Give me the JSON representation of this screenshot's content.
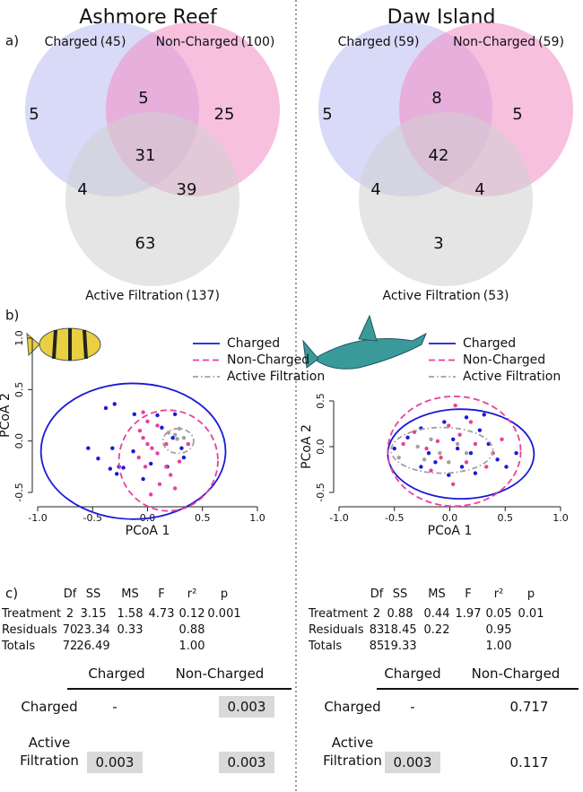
{
  "panel_labels": {
    "a": "a)",
    "b": "b)",
    "c": "c)"
  },
  "chart_data": [
    {
      "type": "venn",
      "title": "Ashmore Reef",
      "sets": [
        {
          "name": "Charged",
          "count": "(45)",
          "color": "#b9b9f2"
        },
        {
          "name": "Non-Charged",
          "count": "(100)",
          "color": "#f08cc4"
        },
        {
          "name": "Active Filtration",
          "count": "(137)",
          "color": "#cfcfcf"
        }
      ],
      "regions": [
        5,
        5,
        25,
        31,
        4,
        39,
        63
      ]
    },
    {
      "type": "venn",
      "title": "Daw Island",
      "sets": [
        {
          "name": "Charged",
          "count": "(59)",
          "color": "#b9b9f2"
        },
        {
          "name": "Non-Charged",
          "count": "(59)",
          "color": "#f08cc4"
        },
        {
          "name": "Active Filtration",
          "count": "(53)",
          "color": "#cfcfcf"
        }
      ],
      "regions": [
        5,
        8,
        5,
        42,
        4,
        4,
        3
      ]
    },
    {
      "type": "scatter",
      "xlabel": "PCoA 1",
      "ylabel": "PCoA 2",
      "xlim": [
        -1,
        1
      ],
      "ylim": [
        -0.5,
        1
      ],
      "xticks": [
        {
          "value": -1,
          "label": "-1.0"
        },
        -0.5,
        {
          "value": 0,
          "label": "0.0"
        },
        0.5,
        {
          "value": 1,
          "label": "1.0"
        }
      ],
      "yticks": [
        -0.5,
        {
          "value": 0,
          "label": "0.0"
        },
        0.5,
        {
          "value": 1,
          "label": "1.0"
        }
      ],
      "series": [
        {
          "name": "Charged",
          "color": "#1a1ad6",
          "line_style": "solid",
          "x": [
            -0.54,
            -0.45,
            -0.38,
            -0.3,
            -0.32,
            -0.34,
            -0.26,
            -0.28,
            -0.22,
            -0.12,
            -0.13,
            0.09,
            0.13,
            0.23,
            0.31,
            0.33,
            0.18,
            0.25,
            -0.04,
            0.03
          ],
          "values": [
            -0.07,
            -0.17,
            0.32,
            0.36,
            -0.07,
            -0.27,
            -0.25,
            -0.32,
            -0.26,
            0.26,
            -0.1,
            0.25,
            0.13,
            0.03,
            -0.07,
            -0.16,
            -0.25,
            0.26,
            -0.37,
            -0.22
          ],
          "ellipse": {
            "cx": -0.13,
            "cy": -0.1,
            "rx": 0.84,
            "ry": 0.66
          }
        },
        {
          "name": "Non-Charged",
          "color": "#e8409c",
          "line_style": "dashed",
          "x": [
            -0.07,
            -0.04,
            0,
            0.04,
            0.09,
            -0.02,
            0.17,
            0.21,
            0.11,
            0.03,
            0.25,
            0.29,
            0,
            0.09,
            -0.08,
            0.17,
            0.37,
            -0.04
          ],
          "values": [
            0.1,
            0.03,
            -0.03,
            -0.07,
            -0.12,
            -0.25,
            -0.25,
            -0.33,
            -0.42,
            -0.52,
            -0.46,
            -0.2,
            0.19,
            0.15,
            -0.16,
            -0.03,
            -0.03,
            0.28
          ],
          "ellipse": {
            "cx": 0.19,
            "cy": -0.19,
            "rx": 0.45,
            "ry": 0.49
          }
        },
        {
          "name": "Active Filtration",
          "color": "#a0a0a0",
          "line_style": "dashdot",
          "x": [
            0.19,
            0.25,
            0.27,
            0.33,
            0.29
          ],
          "values": [
            0.08,
            0.06,
            0.02,
            0.03,
            0.12
          ],
          "ellipse": {
            "cx": 0.28,
            "cy": 0,
            "rx": 0.14,
            "ry": 0.12
          }
        }
      ]
    },
    {
      "type": "scatter",
      "xlabel": "PCoA 1",
      "ylabel": "PCoA 2",
      "xlim": [
        -1,
        1
      ],
      "ylim": [
        -0.5,
        0.5
      ],
      "xticks": [
        {
          "value": -1,
          "label": "-1.0"
        },
        -0.5,
        {
          "value": 0,
          "label": "0.0"
        },
        0.5,
        {
          "value": 1,
          "label": "1.0"
        }
      ],
      "yticks": [
        -0.5,
        {
          "value": 0,
          "label": "0.0"
        },
        0.5
      ],
      "series": [
        {
          "name": "Charged",
          "color": "#1a1ad6",
          "line_style": "solid",
          "x": [
            -0.5,
            -0.38,
            -0.26,
            -0.19,
            -0.13,
            -0.05,
            0.03,
            0.11,
            0.19,
            0.27,
            0.35,
            0.43,
            0.51,
            0.31,
            0.15,
            -0.01,
            -0.26,
            0.07,
            0.23,
            0.6
          ],
          "values": [
            -0.02,
            0.1,
            0.2,
            -0.07,
            -0.17,
            0.27,
            0.08,
            -0.22,
            -0.07,
            0.18,
            0.03,
            -0.14,
            -0.22,
            0.35,
            0.32,
            -0.31,
            -0.22,
            -0.02,
            -0.29,
            -0.07
          ],
          "ellipse": {
            "cx": 0.1,
            "cy": -0.08,
            "rx": 0.66,
            "ry": 0.49
          }
        },
        {
          "name": "Non-Charged",
          "color": "#e8409c",
          "line_style": "dashed",
          "x": [
            -0.42,
            -0.32,
            -0.21,
            -0.11,
            -0.08,
            -0.01,
            0.05,
            0.09,
            0.15,
            0.23,
            0.33,
            0.39,
            -0.17,
            0.03,
            0.19,
            0.47
          ],
          "values": [
            0.03,
            0.16,
            -0.02,
            0.06,
            -0.12,
            0.23,
            0.45,
            0.13,
            -0.17,
            0.03,
            -0.22,
            -0.07,
            -0.26,
            -0.41,
            0.27,
            0.08
          ],
          "ellipse": {
            "cx": 0.04,
            "cy": -0.05,
            "rx": 0.6,
            "ry": 0.6
          }
        },
        {
          "name": "Active Filtration",
          "color": "#a0a0a0",
          "line_style": "dashdot",
          "x": [
            -0.46,
            -0.29,
            -0.17,
            -0.09,
            -0.01,
            0.07,
            0.15,
            -0.23
          ],
          "values": [
            -0.12,
            0,
            0.08,
            -0.07,
            -0.17,
            0.03,
            -0.07,
            -0.14
          ],
          "ellipse": {
            "cx": -0.07,
            "cy": -0.04,
            "rx": 0.46,
            "ry": 0.25
          }
        }
      ]
    }
  ],
  "tables": [
    {
      "anova": {
        "columns": [
          "Df",
          "SS",
          "MS",
          "F",
          "r²",
          "p"
        ],
        "rows": [
          {
            "label": "Treatment",
            "cells": [
              "2",
              "3.15",
              "1.58",
              "4.73",
              "0.12",
              "0.001"
            ]
          },
          {
            "label": "Residuals",
            "cells": [
              "70",
              "23.34",
              "0.33",
              null,
              "0.88",
              null
            ]
          },
          {
            "label": "Totals",
            "cells": [
              "72",
              "26.49",
              null,
              null,
              "1.00",
              null
            ]
          }
        ]
      },
      "pairwise": {
        "columns": [
          "Charged",
          "Non-Charged"
        ],
        "rows": [
          {
            "label": "Charged",
            "cells": [
              "-",
              "0.003"
            ],
            "highlighted": [
              false,
              true
            ]
          },
          {
            "label": "Active Filtration",
            "cells": [
              "0.003",
              "0.003"
            ],
            "highlighted": [
              true,
              true
            ]
          }
        ]
      }
    },
    {
      "anova": {
        "columns": [
          "Df",
          "SS",
          "MS",
          "F",
          "r²",
          "p"
        ],
        "rows": [
          {
            "label": "Treatment",
            "cells": [
              "2",
              "0.88",
              "0.44",
              "1.97",
              "0.05",
              "0.01"
            ]
          },
          {
            "label": "Residuals",
            "cells": [
              "83",
              "18.45",
              "0.22",
              null,
              "0.95",
              null
            ]
          },
          {
            "label": "Totals",
            "cells": [
              "85",
              "19.33",
              null,
              null,
              "1.00",
              null
            ]
          }
        ]
      },
      "pairwise": {
        "columns": [
          "Charged",
          "Non-Charged"
        ],
        "rows": [
          {
            "label": "Charged",
            "cells": [
              "-",
              "0.717"
            ],
            "highlighted": [
              false,
              false
            ]
          },
          {
            "label": "Active Filtration",
            "cells": [
              "0.003",
              "0.117"
            ],
            "highlighted": [
              true,
              false
            ]
          }
        ]
      }
    }
  ]
}
